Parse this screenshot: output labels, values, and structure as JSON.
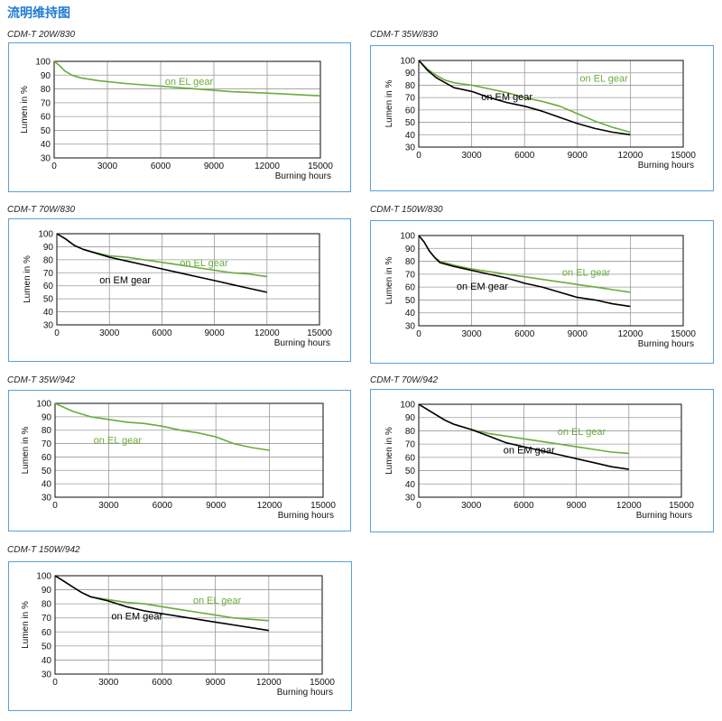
{
  "page": {
    "title": "流明维持图"
  },
  "colors": {
    "el": "#6aab3c",
    "em": "#000000",
    "border": "#5aa0d8",
    "grid": "#9a9a9a",
    "title": "#1f7bd6"
  },
  "chart_data": [
    {
      "type": "line",
      "title": "CDM-T 20W/830",
      "xlabel": "Burning hours",
      "ylabel": "Lumen in %",
      "xlim": [
        0,
        15000
      ],
      "ylim": [
        30,
        100
      ],
      "xticks": [
        0,
        3000,
        6000,
        9000,
        12000,
        15000
      ],
      "yticks": [
        30,
        40,
        50,
        60,
        70,
        80,
        90,
        100
      ],
      "grid": true,
      "series": [
        {
          "name": "on EL gear",
          "key": "el",
          "x": [
            0,
            300,
            600,
            1000,
            1500,
            2500,
            4000,
            6000,
            8000,
            10000,
            12000,
            15000
          ],
          "y": [
            100,
            97,
            93,
            90,
            88,
            86,
            84,
            82,
            80,
            78,
            77,
            75
          ]
        }
      ]
    },
    {
      "type": "line",
      "title": "CDM-T 35W/830",
      "xlabel": "Burning hours",
      "ylabel": "Lumen in %",
      "xlim": [
        0,
        15000
      ],
      "ylim": [
        30,
        100
      ],
      "xticks": [
        0,
        3000,
        6000,
        9000,
        12000,
        15000
      ],
      "yticks": [
        30,
        40,
        50,
        60,
        70,
        80,
        90,
        100
      ],
      "grid": true,
      "series": [
        {
          "name": "on EL gear",
          "key": "el",
          "x": [
            0,
            500,
            1000,
            1500,
            2000,
            3000,
            4000,
            5000,
            6000,
            7000,
            8000,
            9000,
            10000,
            11000,
            12000
          ],
          "y": [
            100,
            93,
            88,
            84,
            82,
            80,
            77,
            74,
            70,
            67,
            63,
            57,
            51,
            46,
            42
          ]
        },
        {
          "name": "on EM gear",
          "key": "em",
          "x": [
            0,
            500,
            1000,
            1500,
            2000,
            3000,
            4000,
            5000,
            6000,
            7000,
            8000,
            9000,
            10000,
            11000,
            12000
          ],
          "y": [
            100,
            92,
            86,
            82,
            78,
            75,
            70,
            66,
            63,
            59,
            54,
            49,
            45,
            42,
            40
          ]
        }
      ]
    },
    {
      "type": "line",
      "title": "CDM-T 70W/830",
      "xlabel": "Burning hours",
      "ylabel": "Lumen in %",
      "xlim": [
        0,
        15000
      ],
      "ylim": [
        30,
        100
      ],
      "xticks": [
        0,
        3000,
        6000,
        9000,
        12000,
        15000
      ],
      "yticks": [
        30,
        40,
        50,
        60,
        70,
        80,
        90,
        100
      ],
      "grid": true,
      "series": [
        {
          "name": "on EL gear",
          "key": "el",
          "x": [
            0,
            500,
            1000,
            1500,
            2000,
            3000,
            4000,
            5000,
            6000,
            7000,
            8000,
            9000,
            10000,
            11000,
            12000
          ],
          "y": [
            100,
            96,
            91,
            88,
            86,
            83,
            82,
            80,
            78,
            76,
            74,
            72,
            70,
            69,
            67
          ]
        },
        {
          "name": "on EM gear",
          "key": "em",
          "x": [
            0,
            500,
            1000,
            1500,
            2000,
            3000,
            4000,
            5000,
            6000,
            7000,
            8000,
            9000,
            10000,
            11000,
            12000
          ],
          "y": [
            100,
            96,
            91,
            88,
            86,
            82,
            79,
            76,
            73,
            70,
            67,
            64,
            61,
            58,
            55
          ]
        }
      ]
    },
    {
      "type": "line",
      "title": "CDM-T 150W/830",
      "xlabel": "Burning hours",
      "ylabel": "Lumen in %",
      "xlim": [
        0,
        15000
      ],
      "ylim": [
        30,
        100
      ],
      "xticks": [
        0,
        3000,
        6000,
        9000,
        12000,
        15000
      ],
      "yticks": [
        30,
        40,
        50,
        60,
        70,
        80,
        90,
        100
      ],
      "grid": true,
      "series": [
        {
          "name": "on EL gear",
          "key": "el",
          "x": [
            0,
            300,
            600,
            900,
            1200,
            2000,
            3000,
            4000,
            5000,
            6000,
            7000,
            8000,
            9000,
            10000,
            11000,
            12000
          ],
          "y": [
            100,
            95,
            88,
            83,
            80,
            77,
            74,
            72,
            70,
            68,
            66,
            64,
            62,
            60,
            58,
            56
          ]
        },
        {
          "name": "on EM gear",
          "key": "em",
          "x": [
            0,
            300,
            600,
            900,
            1200,
            2000,
            3000,
            4000,
            5000,
            6000,
            7000,
            8000,
            9000,
            10000,
            11000,
            12000
          ],
          "y": [
            100,
            95,
            88,
            83,
            79,
            76,
            73,
            70,
            67,
            63,
            60,
            56,
            52,
            50,
            47,
            45
          ]
        }
      ]
    },
    {
      "type": "line",
      "title": "CDM-T 35W/942",
      "xlabel": "Burning hours",
      "ylabel": "Lumen in %",
      "xlim": [
        0,
        15000
      ],
      "ylim": [
        30,
        100
      ],
      "xticks": [
        0,
        3000,
        6000,
        9000,
        12000,
        15000
      ],
      "yticks": [
        30,
        40,
        50,
        60,
        70,
        80,
        90,
        100
      ],
      "grid": true,
      "series": [
        {
          "name": "on EL gear",
          "key": "el",
          "x": [
            0,
            500,
            1000,
            1500,
            2000,
            3000,
            4000,
            5000,
            6000,
            7000,
            8000,
            9000,
            10000,
            11000,
            12000
          ],
          "y": [
            100,
            97,
            94,
            92,
            90,
            88,
            86,
            85,
            83,
            80,
            78,
            75,
            70,
            67,
            65
          ]
        }
      ]
    },
    {
      "type": "line",
      "title": "CDM-T 70W/942",
      "xlabel": "Burning hours",
      "ylabel": "Lumen in %",
      "xlim": [
        0,
        15000
      ],
      "ylim": [
        30,
        100
      ],
      "xticks": [
        0,
        3000,
        6000,
        9000,
        12000,
        15000
      ],
      "yticks": [
        30,
        40,
        50,
        60,
        70,
        80,
        90,
        100
      ],
      "grid": true,
      "series": [
        {
          "name": "on EL gear",
          "key": "el",
          "x": [
            0,
            500,
            1000,
            1500,
            2000,
            3000,
            4000,
            5000,
            6000,
            7000,
            8000,
            9000,
            10000,
            11000,
            12000
          ],
          "y": [
            100,
            96,
            92,
            88,
            85,
            81,
            78,
            76,
            74,
            72,
            70,
            68,
            66,
            64,
            63
          ]
        },
        {
          "name": "on EM gear",
          "key": "em",
          "x": [
            0,
            500,
            1000,
            1500,
            2000,
            3000,
            4000,
            5000,
            6000,
            7000,
            8000,
            9000,
            10000,
            11000,
            12000
          ],
          "y": [
            100,
            96,
            92,
            88,
            85,
            81,
            76,
            71,
            68,
            65,
            62,
            59,
            56,
            53,
            51
          ]
        }
      ]
    },
    {
      "type": "line",
      "title": "CDM-T 150W/942",
      "xlabel": "Burning hours",
      "ylabel": "Lumen in %",
      "xlim": [
        0,
        15000
      ],
      "ylim": [
        30,
        100
      ],
      "xticks": [
        0,
        3000,
        6000,
        9000,
        12000,
        15000
      ],
      "yticks": [
        30,
        40,
        50,
        60,
        70,
        80,
        90,
        100
      ],
      "grid": true,
      "series": [
        {
          "name": "on EL gear",
          "key": "el",
          "x": [
            0,
            500,
            1000,
            1500,
            2000,
            3000,
            4000,
            5000,
            6000,
            7000,
            8000,
            9000,
            10000,
            11000,
            12000
          ],
          "y": [
            100,
            96,
            92,
            88,
            85,
            83,
            81,
            80,
            78,
            76,
            74,
            72,
            70,
            69,
            68
          ]
        },
        {
          "name": "on EM gear",
          "key": "em",
          "x": [
            0,
            500,
            1000,
            1500,
            2000,
            3000,
            4000,
            5000,
            6000,
            7000,
            8000,
            9000,
            10000,
            11000,
            12000
          ],
          "y": [
            100,
            96,
            92,
            88,
            85,
            82,
            78,
            75,
            73,
            71,
            69,
            67,
            65,
            63,
            61
          ]
        }
      ]
    }
  ]
}
